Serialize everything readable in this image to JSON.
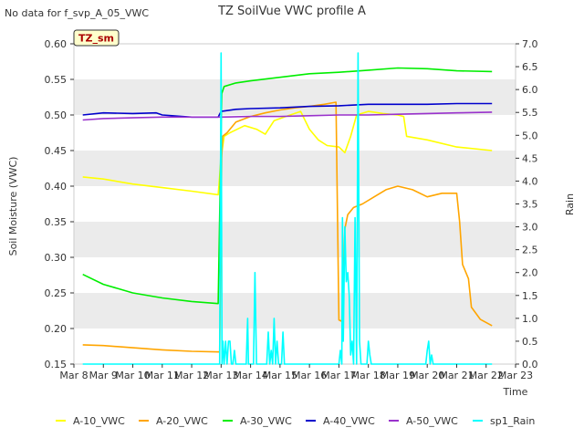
{
  "chart_data": {
    "type": "line",
    "title": "TZ SoilVue VWC profile A",
    "top_left_note": "No data for f_svp_A_05_VWC",
    "site_badge": "TZ_sm",
    "xlabel": "Time",
    "ylabel": "Soil Moisture (VWC)",
    "y2label": "Rain",
    "xlim": [
      8,
      23
    ],
    "ylim": [
      0.15,
      0.6
    ],
    "y2lim": [
      0.0,
      7.0
    ],
    "x_ticks": [
      8,
      9,
      10,
      11,
      12,
      13,
      14,
      15,
      16,
      17,
      18,
      19,
      20,
      21,
      22,
      23
    ],
    "x_tick_labels": [
      "Mar 8",
      "Mar 9",
      "Mar 10",
      "Mar 11",
      "Mar 12",
      "Mar 13",
      "Mar 14",
      "Mar 15",
      "Mar 16",
      "Mar 17",
      "Mar 18",
      "Mar 19",
      "Mar 20",
      "Mar 21",
      "Mar 22",
      "Mar 23"
    ],
    "y_ticks": [
      0.15,
      0.2,
      0.25,
      0.3,
      0.35,
      0.4,
      0.45,
      0.5,
      0.55,
      0.6
    ],
    "y_tick_labels": [
      "0.15",
      "0.20",
      "0.25",
      "0.30",
      "0.35",
      "0.40",
      "0.45",
      "0.50",
      "0.55",
      "0.60"
    ],
    "y2_ticks": [
      0,
      0.5,
      1,
      1.5,
      2,
      2.5,
      3,
      3.5,
      4,
      4.5,
      5,
      5.5,
      6,
      6.5,
      7
    ],
    "y2_tick_labels": [
      "0.0",
      "0.5",
      "1.0",
      "1.5",
      "2.0",
      "2.5",
      "3.0",
      "3.5",
      "4.0",
      "4.5",
      "5.0",
      "5.5",
      "6.0",
      "6.5",
      "7.0"
    ],
    "grid": "horizontal bands",
    "band_color": "#ebebeb",
    "legend_position": "bottom",
    "series": [
      {
        "name": "A-10_VWC",
        "color": "#ffff00",
        "axis": "left",
        "x": [
          8.3,
          9,
          10,
          11,
          12,
          12.9,
          13.0,
          13.1,
          13.3,
          13.8,
          14.2,
          14.5,
          14.8,
          15.2,
          15.7,
          16.0,
          16.3,
          16.6,
          17.0,
          17.2,
          17.4,
          17.6,
          18.0,
          18.5,
          19.0,
          19.2,
          19.3,
          20.0,
          21.0,
          22.2
        ],
        "y": [
          0.413,
          0.41,
          0.403,
          0.398,
          0.393,
          0.388,
          0.44,
          0.47,
          0.475,
          0.485,
          0.48,
          0.473,
          0.492,
          0.498,
          0.505,
          0.48,
          0.465,
          0.457,
          0.455,
          0.447,
          0.47,
          0.5,
          0.505,
          0.502,
          0.5,
          0.498,
          0.47,
          0.465,
          0.455,
          0.45
        ]
      },
      {
        "name": "A-20_VWC",
        "color": "#ffa500",
        "axis": "left",
        "x": [
          8.3,
          9,
          10,
          11,
          12,
          12.95,
          13.02,
          13.05,
          13.2,
          13.5,
          14,
          14.5,
          15,
          15.5,
          16,
          16.5,
          16.9,
          17.0,
          17.1,
          17.2,
          17.3,
          17.5,
          17.8,
          18.2,
          18.6,
          19.0,
          19.5,
          20.0,
          20.5,
          21.0,
          21.1,
          21.2,
          21.4,
          21.5,
          21.8,
          22.2
        ],
        "y": [
          0.177,
          0.176,
          0.173,
          0.17,
          0.168,
          0.167,
          0.44,
          0.47,
          0.475,
          0.49,
          0.498,
          0.503,
          0.507,
          0.51,
          0.512,
          0.515,
          0.518,
          0.212,
          0.21,
          0.34,
          0.36,
          0.37,
          0.375,
          0.385,
          0.395,
          0.4,
          0.395,
          0.385,
          0.39,
          0.39,
          0.35,
          0.29,
          0.27,
          0.23,
          0.213,
          0.204
        ]
      },
      {
        "name": "A-30_VWC",
        "color": "#00ee00",
        "axis": "left",
        "x": [
          8.3,
          9,
          10,
          11,
          12,
          12.9,
          13.02,
          13.1,
          13.5,
          14,
          15,
          16,
          17,
          18,
          19,
          20,
          21,
          22.2
        ],
        "y": [
          0.276,
          0.262,
          0.25,
          0.243,
          0.238,
          0.235,
          0.53,
          0.54,
          0.545,
          0.548,
          0.553,
          0.558,
          0.56,
          0.563,
          0.566,
          0.565,
          0.562,
          0.561
        ]
      },
      {
        "name": "A-40_VWC",
        "color": "#0000cc",
        "axis": "left",
        "x": [
          8.3,
          9,
          10,
          10.8,
          11,
          12,
          12.9,
          13.0,
          13.5,
          14,
          15,
          16,
          17,
          18,
          19,
          20,
          21,
          22.2
        ],
        "y": [
          0.5,
          0.503,
          0.502,
          0.503,
          0.5,
          0.497,
          0.497,
          0.505,
          0.508,
          0.509,
          0.51,
          0.512,
          0.513,
          0.515,
          0.515,
          0.515,
          0.516,
          0.516
        ]
      },
      {
        "name": "A-50_VWC",
        "color": "#9932cc",
        "axis": "left",
        "x": [
          8.3,
          9,
          10,
          11,
          12,
          13,
          14,
          15,
          16,
          17,
          18,
          19,
          20,
          21,
          22.2
        ],
        "y": [
          0.493,
          0.495,
          0.496,
          0.497,
          0.497,
          0.497,
          0.498,
          0.498,
          0.499,
          0.5,
          0.5,
          0.501,
          0.502,
          0.503,
          0.504
        ]
      },
      {
        "name": "sp1_Rain",
        "color": "#00ffff",
        "axis": "right",
        "x": [
          8.3,
          12.95,
          13.0,
          13.03,
          13.06,
          13.1,
          13.15,
          13.2,
          13.25,
          13.3,
          13.35,
          13.4,
          13.45,
          13.5,
          13.55,
          13.6,
          13.65,
          13.7,
          13.75,
          13.85,
          13.9,
          13.93,
          13.97,
          14.0,
          14.1,
          14.15,
          14.2,
          14.25,
          14.3,
          14.35,
          14.4,
          14.5,
          14.55,
          14.6,
          14.65,
          14.7,
          14.75,
          14.8,
          14.85,
          14.9,
          14.95,
          15.0,
          15.05,
          15.1,
          15.15,
          15.2,
          15.25,
          15.3,
          15.35,
          15.4,
          17.0,
          17.05,
          17.1,
          17.12,
          17.15,
          17.2,
          17.25,
          17.3,
          17.35,
          17.4,
          17.45,
          17.5,
          17.55,
          17.6,
          17.65,
          17.7,
          17.75,
          17.8,
          17.9,
          17.95,
          18.0,
          18.05,
          18.1,
          18.15,
          18.2,
          19.95,
          20.0,
          20.05,
          20.1,
          20.15,
          20.2,
          20.25,
          22.2
        ],
        "y": [
          0,
          0,
          6.8,
          0,
          0.5,
          0,
          0.5,
          0,
          0.5,
          0.5,
          0,
          0,
          0.3,
          0,
          0,
          0,
          0,
          0,
          0,
          0,
          1.0,
          0,
          0,
          0,
          0,
          2.0,
          0,
          0,
          0,
          0,
          0,
          0,
          0,
          0.7,
          0,
          0.3,
          0,
          1.0,
          0,
          0.5,
          0,
          0,
          0,
          0.7,
          0,
          0,
          0,
          0,
          0,
          0,
          0,
          0.3,
          0,
          3.2,
          0.5,
          3.0,
          1.8,
          2.0,
          1.5,
          0.2,
          0.5,
          0,
          3.2,
          0,
          6.8,
          0.5,
          0,
          0,
          0,
          0,
          0.5,
          0.2,
          0,
          0,
          0,
          0,
          0.3,
          0.5,
          0,
          0.2,
          0,
          0,
          0
        ]
      }
    ]
  }
}
